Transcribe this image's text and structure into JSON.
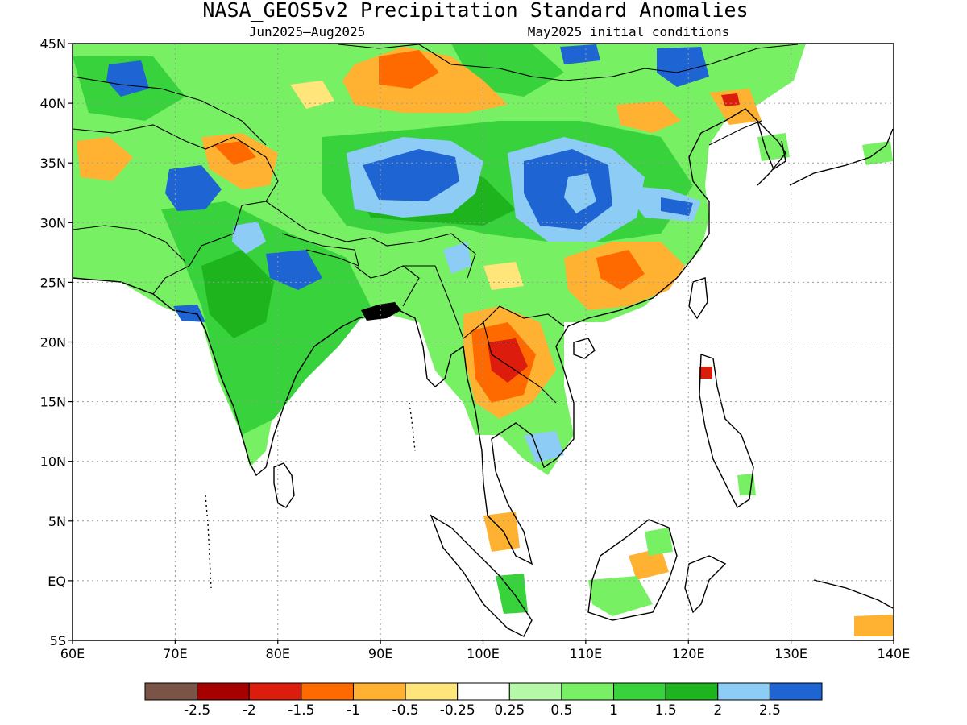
{
  "title": "NASA_GEOS5v2 Precipitation Standard Anomalies",
  "subtitle_left": "Jun2025–Aug2025",
  "subtitle_right": "May2025 initial conditions",
  "lon_ticks": [
    "60E",
    "70E",
    "80E",
    "90E",
    "100E",
    "110E",
    "120E",
    "130E",
    "140E"
  ],
  "lat_ticks": [
    "45N",
    "40N",
    "35N",
    "30N",
    "25N",
    "20N",
    "15N",
    "10N",
    "5N",
    "EQ",
    "5S"
  ],
  "colorbar": {
    "colors": [
      "#7b5448",
      "#a60000",
      "#dc1c0c",
      "#ff6a00",
      "#ffb232",
      "#ffe57a",
      "#ffffff",
      "#b4f8a8",
      "#78f064",
      "#37d23c",
      "#1eb41e",
      "#8cccf5",
      "#1e64d2"
    ],
    "labels": [
      "-2.5",
      "-2",
      "-1.5",
      "-1",
      "-0.5",
      "-0.25",
      "0.25",
      "0.5",
      "1",
      "1.5",
      "2",
      "2.5"
    ]
  }
}
